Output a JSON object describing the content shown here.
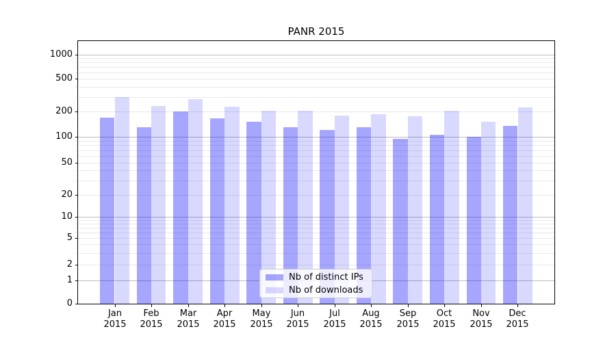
{
  "chart_data": {
    "type": "bar",
    "title": "PANR 2015",
    "categories": [
      "Jan",
      "Feb",
      "Mar",
      "Apr",
      "May",
      "Jun",
      "Jul",
      "Aug",
      "Sep",
      "Oct",
      "Nov",
      "Dec"
    ],
    "category_year": "2015",
    "series": [
      {
        "name": "Nb of distinct IPs",
        "color": "rgba(0,0,255,0.35)",
        "values": [
          170,
          130,
          200,
          165,
          150,
          130,
          120,
          130,
          95,
          105,
          100,
          135
        ]
      },
      {
        "name": "Nb of downloads",
        "color": "rgba(0,0,255,0.15)",
        "values": [
          300,
          235,
          280,
          230,
          205,
          205,
          180,
          185,
          175,
          205,
          150,
          225
        ]
      }
    ],
    "yticks": [
      0,
      1,
      2,
      5,
      10,
      20,
      50,
      100,
      200,
      500,
      1000
    ],
    "yscale": "symlog",
    "ylim": [
      0,
      1500
    ],
    "grid": true,
    "legend_position": "lower center",
    "xlabel": "",
    "ylabel": ""
  },
  "colors": {
    "major_grid": "#bcbcbc",
    "minor_grid": "#e9e9e9",
    "spine": "#000000",
    "legend_border": "#cccccc",
    "legend_bg": "rgba(255,255,255,0.8)"
  }
}
